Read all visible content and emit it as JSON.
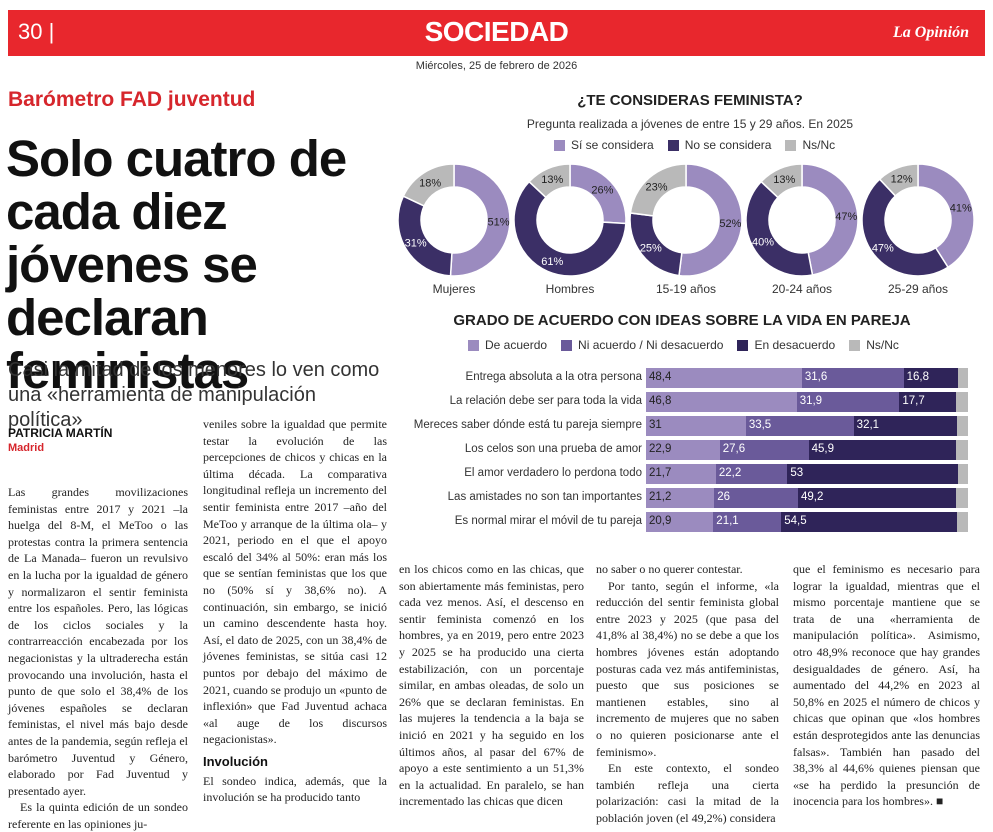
{
  "header": {
    "page_number": "30 |",
    "section": "SOCIEDAD",
    "logo": "La Opinión",
    "date": "Miércoles, 25 de febrero de 2026"
  },
  "article": {
    "kicker": "Barómetro FAD juventud",
    "headline": "Solo cuatro de cada diez jóvenes se declaran feministas",
    "subhead": "Casi la mitad de los menores lo ven como una «herramienta de manipulación política»",
    "author": "PATRICIA MARTÍN",
    "city": "Madrid",
    "col1": "Las grandes movilizaciones feministas entre 2017 y 2021 –la huelga del 8-M, el MeToo o las protestas contra la primera sentencia de La Manada– fueron un revulsivo en la lucha por la igualdad de género y normalizaron el sentir feminista entre los españoles. Pero, las lógicas de los ciclos sociales y la contrarreacción encabezada por los negacionistas y la ultraderecha están provocando una involución, hasta el punto de que solo el 38,4% de los jóvenes españoles se declaran feministas, el nivel más bajo desde antes de la pandemia, según refleja el barómetro Juventud y Género, elaborado por Fad Juventud y presentado ayer.",
    "col1b": "Es la quinta edición de un sondeo referente en las opiniones ju-",
    "col2": "veniles sobre la igualdad que permite testar la evolución de las percepciones de chicos y chicas en la última década. La comparativa longitudinal refleja un incremento del sentir feminista entre 2017 –año del MeToo y arranque de la última ola– y 2021, periodo en el que el apoyo escaló del 34% al 50%: eran más los que se sentían feministas que los que no (50% sí y 38,6% no). A continuación, sin embargo, se inició un camino descendente hasta hoy. Así, el dato de 2025, con un 38,4% de jóvenes feministas, se sitúa casi 12 puntos por debajo del máximo de 2021, cuando se produjo un «punto de inflexión» que Fad Juventud achaca «al auge de los discursos negacionistas».",
    "col2_heading": "Involución",
    "col2b": "El sondeo indica, además, que la involución se ha producido tanto",
    "col3": "en los chicos como en las chicas, que son abiertamente más feministas, pero cada vez menos. Así, el descenso en sentir feminista comenzó en los hombres, ya en 2019, pero entre 2023 y 2025 se ha producido una cierta estabilización, con un porcentaje similar, en ambas oleadas, de solo un 26% que se declaran feministas. En las mujeres la tendencia a la baja se inició en 2021 y ha seguido en los últimos años, al pasar del 67% de apoyo a este sentimiento a un 51,3% en la actualidad. En paralelo, se han incrementado las chicas que dicen",
    "col4": "no saber o no querer contestar.",
    "col4b": "Por tanto, según el informe, «la reducción del sentir feminista global entre 2023 y 2025 (que pasa del 41,8% al 38,4%) no se debe a que los hombres jóvenes están adoptando posturas cada vez más antifeministas, puesto que sus posiciones se mantienen estables, sino al incremento de mujeres que no saben o no quieren posicionarse ante el feminismo».",
    "col4c": "En este contexto, el sondeo también refleja una cierta polarización: casi la mitad de la población joven (el 49,2%) considera",
    "col5": "que el feminismo es necesario para lograr la igualdad, mientras que el mismo porcentaje mantiene que se trata de una «herramienta de manipulación política». Asimismo, otro 48,9% reconoce que hay grandes desigualdades de género. Así, ha aumentado del 44,2% en 2023 al 50,8% en 2025 el número de chicos y chicas que opinan que «los hombres están desprotegidos ante las denuncias falsas». También han pasado del 38,3% al 44,6% quienes piensan que «se ha perdido la presunción de inocencia para los hombres».",
    "end_mark": "■"
  },
  "colors": {
    "red": "#e8272d",
    "si": "#9b8bbf",
    "no": "#3b2f66",
    "nsnc": "#b9b9b9",
    "acuerdo": "#9b8bbf",
    "neutral": "#6a5a9a",
    "desacuerdo": "#2f2459"
  },
  "chart_data": [
    {
      "type": "pie",
      "title": "¿TE CONSIDERAS FEMINISTA?",
      "subtitle": "Pregunta realizada a jóvenes de entre 15 y 29 años. En 2025",
      "legend": [
        "Sí se considera",
        "No se considera",
        "Ns/Nc"
      ],
      "groups": [
        {
          "name": "Mujeres",
          "values": [
            51,
            31,
            18
          ],
          "labels": [
            "51%",
            "31%",
            "18%"
          ]
        },
        {
          "name": "Hombres",
          "values": [
            26,
            61,
            13
          ],
          "labels": [
            "26%",
            "61%",
            "13%"
          ]
        },
        {
          "name": "15-19 años",
          "values": [
            52,
            25,
            23
          ],
          "labels": [
            "52%",
            "25%",
            "23%"
          ]
        },
        {
          "name": "20-24 años",
          "values": [
            47,
            40,
            13
          ],
          "labels": [
            "47%",
            "40%",
            "13%"
          ]
        },
        {
          "name": "25-29 años",
          "values": [
            41,
            47,
            12
          ],
          "labels": [
            "41%",
            "47%",
            "12%"
          ]
        }
      ]
    },
    {
      "type": "bar",
      "title": "GRADO DE ACUERDO CON IDEAS SOBRE LA VIDA EN PAREJA",
      "legend": [
        "De acuerdo",
        "Ni acuerdo / Ni desacuerdo",
        "En desacuerdo",
        "Ns/Nc"
      ],
      "categories": [
        "Entrega absoluta a la otra persona",
        "La relación debe ser para toda la vida",
        "Mereces saber dónde está tu pareja siempre",
        "Los celos son una prueba de amor",
        "El amor verdadero lo perdona todo",
        "Las amistades no son tan importantes",
        "Es normal mirar el móvil de tu pareja"
      ],
      "series": [
        {
          "name": "De acuerdo",
          "values": [
            48.4,
            46.8,
            31,
            22.9,
            21.7,
            21.2,
            20.9
          ],
          "labels": [
            "48,4",
            "46,8",
            "31",
            "22,9",
            "21,7",
            "21,2",
            "20,9"
          ]
        },
        {
          "name": "Ni acuerdo / Ni desacuerdo",
          "values": [
            31.6,
            31.9,
            33.5,
            27.6,
            22.2,
            26,
            21.1
          ],
          "labels": [
            "31,6",
            "31,9",
            "33,5",
            "27,6",
            "22,2",
            "26",
            "21,1"
          ]
        },
        {
          "name": "En desacuerdo",
          "values": [
            16.8,
            17.7,
            32.1,
            45.9,
            53,
            49.2,
            54.5
          ],
          "labels": [
            "16,8",
            "17,7",
            "32,1",
            "45,9",
            "53",
            "49,2",
            "54,5"
          ]
        },
        {
          "name": "Ns/Nc",
          "values": [
            3.2,
            3.6,
            3.4,
            3.6,
            3.1,
            3.6,
            3.5
          ],
          "labels": [
            "",
            "",
            "",
            "",
            "",
            "",
            ""
          ]
        }
      ]
    }
  ]
}
